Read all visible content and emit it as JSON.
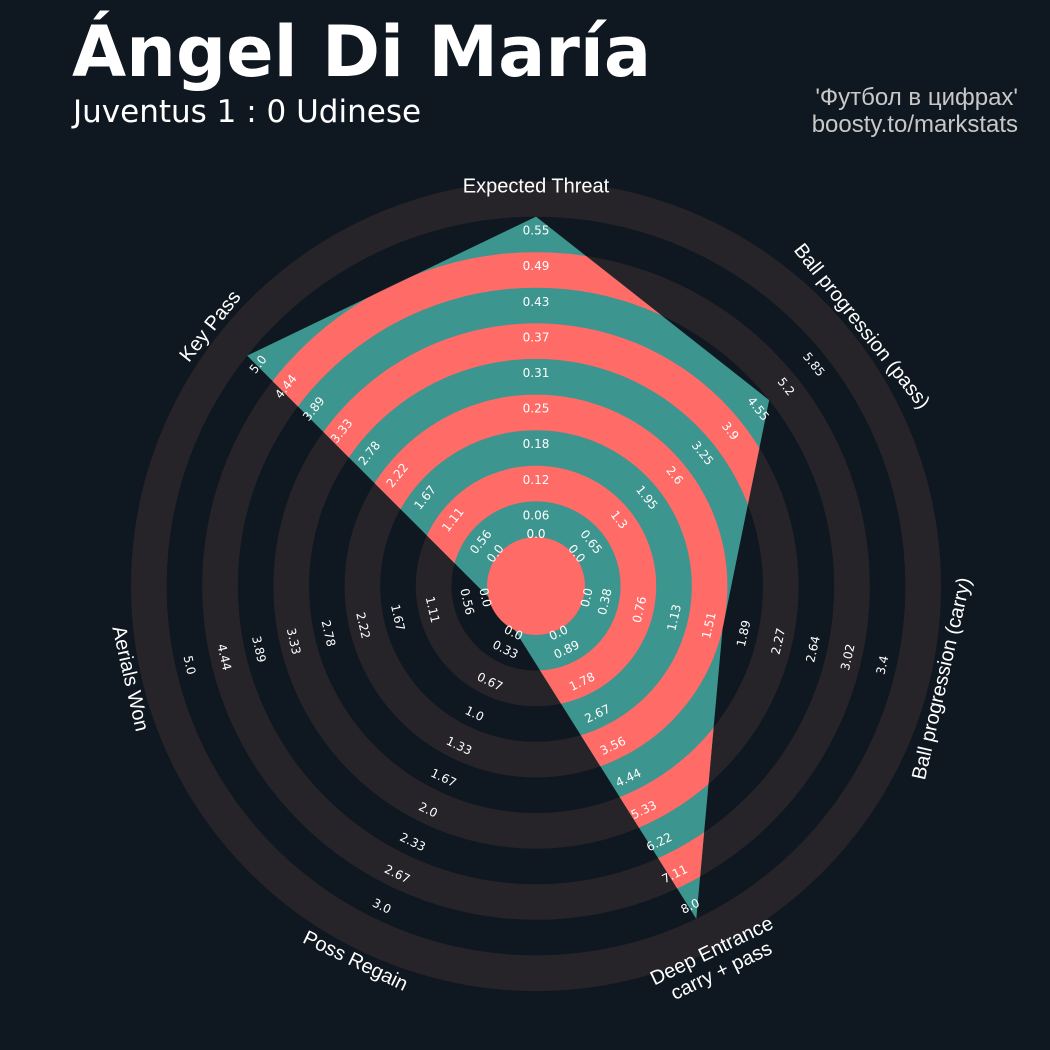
{
  "header": {
    "title": "Ángel Di María",
    "subtitle": "Juventus 1 : 0 Udinese",
    "credit_line1": "'Футбол в цифрах'",
    "credit_line2": "boosty.to/markstats"
  },
  "colors": {
    "background": "#0f1820",
    "ring_band": "#272429",
    "fill_a": "#3d958f",
    "fill_b": "#ff6b67",
    "text": "#ffffff"
  },
  "chart_data": {
    "type": "radar",
    "axes": [
      {
        "name": "Expected Threat",
        "value": 0.55,
        "ticks": [
          "0.0",
          "0.06",
          "0.12",
          "0.18",
          "0.25",
          "0.31",
          "0.37",
          "0.43",
          "0.49",
          "0.55"
        ]
      },
      {
        "name": "Ball progression (pass)",
        "value": 4.55,
        "ticks": [
          "0.0",
          "0.65",
          "1.3",
          "1.95",
          "2.6",
          "3.25",
          "3.9",
          "4.55",
          "5.2",
          "5.85"
        ]
      },
      {
        "name": "Ball progression (carry)",
        "value": 1.51,
        "ticks": [
          "0.0",
          "0.38",
          "0.76",
          "1.13",
          "1.51",
          "1.89",
          "2.27",
          "2.64",
          "3.02",
          "3.4"
        ]
      },
      {
        "name": "Deep Entrance\ncarry + pass",
        "value": 8.0,
        "ticks": [
          "0.0",
          "0.89",
          "1.78",
          "2.67",
          "3.56",
          "4.44",
          "5.33",
          "6.22",
          "7.11",
          "8.0"
        ]
      },
      {
        "name": "Poss Regain",
        "value": 0.0,
        "ticks": [
          "0.0",
          "0.33",
          "0.67",
          "1.0",
          "1.33",
          "1.67",
          "2.0",
          "2.33",
          "2.67",
          "3.0"
        ]
      },
      {
        "name": "Aerials Won",
        "value": 0.0,
        "ticks": [
          "0.0",
          "0.56",
          "1.11",
          "1.67",
          "2.22",
          "2.78",
          "3.33",
          "3.89",
          "4.44",
          "5.0"
        ]
      },
      {
        "name": "Key Pass",
        "value": 5.0,
        "ticks": [
          "0.0",
          "0.56",
          "1.11",
          "1.67",
          "2.22",
          "2.78",
          "3.33",
          "3.89",
          "4.44",
          "5.0"
        ]
      }
    ],
    "value_fractions": [
      1.0,
      0.7778,
      0.4444,
      1.0,
      0.0,
      0.0,
      1.0
    ]
  }
}
